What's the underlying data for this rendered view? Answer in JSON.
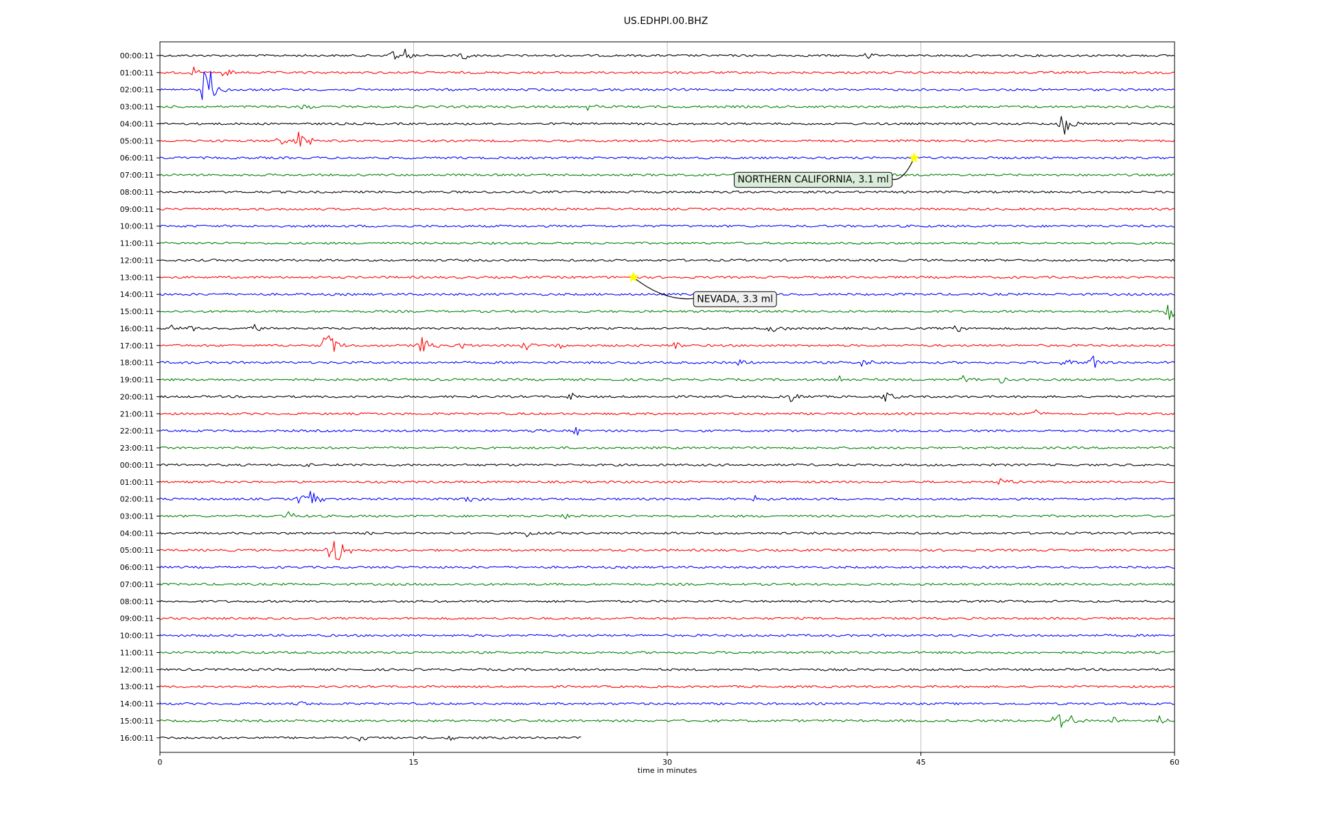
{
  "chart_data": {
    "type": "line",
    "title": "US.EDHPI.00.BHZ",
    "xlabel": "time in minutes",
    "ylabel": "",
    "xlim": [
      0,
      60
    ],
    "xticks": [
      "0",
      "15",
      "30",
      "45",
      "60"
    ],
    "grid_x": true,
    "trace_colors": [
      "#000000",
      "#ff0000",
      "#0000ff",
      "#008000"
    ],
    "last_row_end_minute": 24.9,
    "rows": [
      {
        "label": "00:00:11",
        "events": [
          {
            "t": 13.6,
            "amp": 0.5
          },
          {
            "t": 14.5,
            "amp": 0.5
          },
          {
            "t": 17.8,
            "amp": 0.4
          },
          {
            "t": 41.8,
            "amp": 0.3
          }
        ]
      },
      {
        "label": "01:00:11",
        "events": [
          {
            "t": 2.0,
            "amp": 0.3
          },
          {
            "t": 3.8,
            "amp": 0.5
          }
        ]
      },
      {
        "label": "02:00:11",
        "events": [
          {
            "t": 2.6,
            "amp": 1.5
          },
          {
            "t": 3.0,
            "amp": 1.0
          }
        ]
      },
      {
        "label": "03:00:11",
        "events": [
          {
            "t": 8.4,
            "amp": 0.3
          },
          {
            "t": 25.3,
            "amp": 0.3
          }
        ]
      },
      {
        "label": "04:00:11",
        "events": [
          {
            "t": 53.4,
            "amp": 1.2
          }
        ]
      },
      {
        "label": "05:00:11",
        "events": [
          {
            "t": 8.2,
            "amp": 1.3
          },
          {
            "t": 7.0,
            "amp": 0.3
          }
        ]
      },
      {
        "label": "06:00:11",
        "events": []
      },
      {
        "label": "07:00:11",
        "events": []
      },
      {
        "label": "08:00:11",
        "events": []
      },
      {
        "label": "09:00:11",
        "events": []
      },
      {
        "label": "10:00:11",
        "events": []
      },
      {
        "label": "11:00:11",
        "events": []
      },
      {
        "label": "12:00:11",
        "events": []
      },
      {
        "label": "13:00:11",
        "events": []
      },
      {
        "label": "14:00:11",
        "events": []
      },
      {
        "label": "15:00:11",
        "events": [
          {
            "t": 59.6,
            "amp": 0.9
          }
        ]
      },
      {
        "label": "16:00:11",
        "events": [
          {
            "t": 0.3,
            "amp": 0.5
          },
          {
            "t": 1.8,
            "amp": 0.4
          },
          {
            "t": 5.5,
            "amp": 0.4
          },
          {
            "t": 36.1,
            "amp": 0.4
          },
          {
            "t": 47.0,
            "amp": 0.4
          }
        ]
      },
      {
        "label": "17:00:11",
        "events": [
          {
            "t": 9.8,
            "amp": 1.4
          },
          {
            "t": 15.4,
            "amp": 0.8
          },
          {
            "t": 17.8,
            "amp": 0.3
          },
          {
            "t": 21.5,
            "amp": 0.4
          },
          {
            "t": 23.5,
            "amp": 0.3
          },
          {
            "t": 30.5,
            "amp": 0.3
          }
        ]
      },
      {
        "label": "18:00:11",
        "events": [
          {
            "t": 34.2,
            "amp": 0.3
          },
          {
            "t": 41.5,
            "amp": 0.4
          },
          {
            "t": 53.4,
            "amp": 0.6
          },
          {
            "t": 55.1,
            "amp": 0.6
          }
        ]
      },
      {
        "label": "19:00:11",
        "events": [
          {
            "t": 40.2,
            "amp": 0.3
          },
          {
            "t": 47.5,
            "amp": 0.3
          },
          {
            "t": 49.7,
            "amp": 0.3
          }
        ]
      },
      {
        "label": "20:00:11",
        "events": [
          {
            "t": 24.2,
            "amp": 0.3
          },
          {
            "t": 37.3,
            "amp": 0.4
          },
          {
            "t": 42.9,
            "amp": 0.4
          }
        ]
      },
      {
        "label": "21:00:11",
        "events": [
          {
            "t": 51.8,
            "amp": 0.3
          }
        ]
      },
      {
        "label": "22:00:11",
        "events": [
          {
            "t": 21.8,
            "amp": 0.3
          },
          {
            "t": 24.6,
            "amp": 0.4
          }
        ]
      },
      {
        "label": "23:00:11",
        "events": []
      },
      {
        "label": "00:00:11",
        "events": [
          {
            "t": 8.4,
            "amp": 0.2
          }
        ]
      },
      {
        "label": "01:00:11",
        "events": [
          {
            "t": 49.7,
            "amp": 0.4
          }
        ]
      },
      {
        "label": "02:00:11",
        "events": [
          {
            "t": 8.3,
            "amp": 0.6
          },
          {
            "t": 8.9,
            "amp": 0.6
          },
          {
            "t": 18.0,
            "amp": 0.4
          },
          {
            "t": 35.2,
            "amp": 0.3
          }
        ]
      },
      {
        "label": "03:00:11",
        "events": [
          {
            "t": 7.6,
            "amp": 0.3
          },
          {
            "t": 24.0,
            "amp": 0.2
          }
        ]
      },
      {
        "label": "04:00:11",
        "events": [
          {
            "t": 12.3,
            "amp": 0.3
          },
          {
            "t": 21.7,
            "amp": 0.3
          }
        ]
      },
      {
        "label": "05:00:11",
        "events": [
          {
            "t": 10.0,
            "amp": 0.5
          },
          {
            "t": 10.4,
            "amp": 1.2
          }
        ]
      },
      {
        "label": "06:00:11",
        "events": []
      },
      {
        "label": "07:00:11",
        "events": []
      },
      {
        "label": "08:00:11",
        "events": []
      },
      {
        "label": "09:00:11",
        "events": []
      },
      {
        "label": "10:00:11",
        "events": []
      },
      {
        "label": "11:00:11",
        "events": []
      },
      {
        "label": "12:00:11",
        "events": []
      },
      {
        "label": "13:00:11",
        "events": []
      },
      {
        "label": "14:00:11",
        "events": [
          {
            "t": 8.2,
            "amp": 0.2
          }
        ]
      },
      {
        "label": "15:00:11",
        "events": [
          {
            "t": 53.0,
            "amp": 1.2
          },
          {
            "t": 53.8,
            "amp": 0.5
          },
          {
            "t": 56.3,
            "amp": 0.3
          },
          {
            "t": 59.1,
            "amp": 0.3
          }
        ]
      },
      {
        "label": "16:00:11",
        "events": [
          {
            "t": 11.8,
            "amp": 0.2
          },
          {
            "t": 17.0,
            "amp": 0.2
          }
        ]
      }
    ],
    "annotations": [
      {
        "text": "NORTHERN CALIFORNIA, 3.1 ml",
        "row": 6,
        "t": 44.6,
        "marker_color": "#ffff00",
        "box_color": "#d9ecd9"
      },
      {
        "text": "NEVADA, 3.3 ml",
        "row": 13,
        "t": 28.0,
        "marker_color": "#ffff00",
        "box_color": "#f0f0f0"
      }
    ]
  }
}
